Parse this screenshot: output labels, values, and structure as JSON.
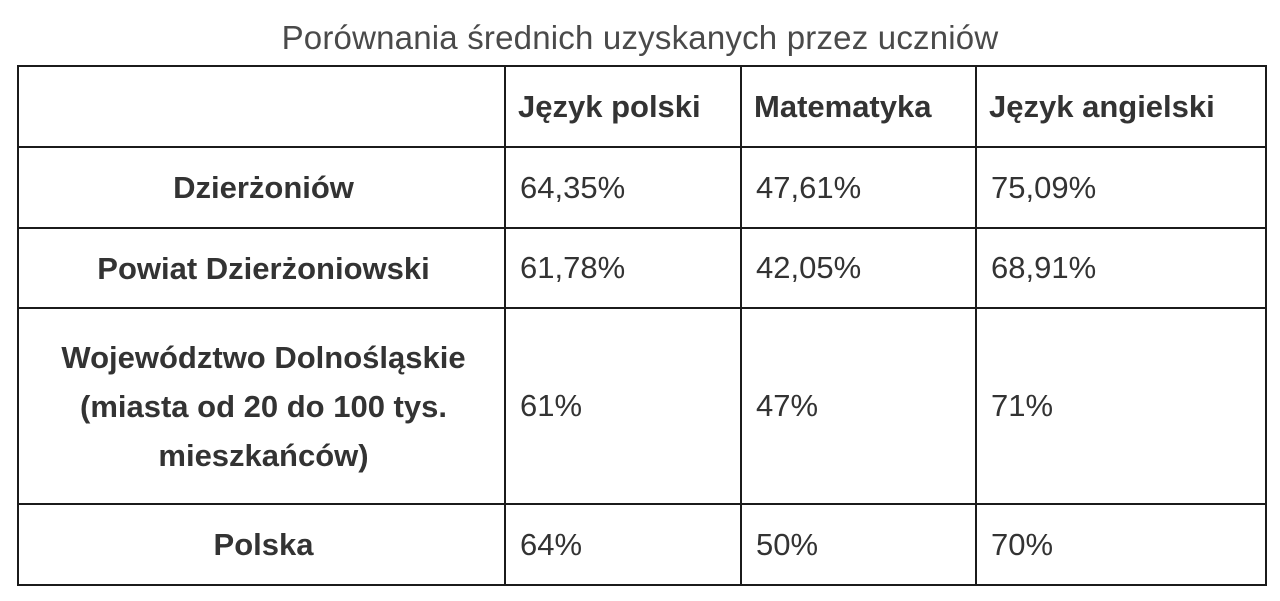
{
  "caption": "Porównania średnich uzyskanych przez uczniów",
  "table": {
    "columns": [
      "",
      "Język polski",
      "Matematyka",
      "Język angielski"
    ],
    "rows": [
      {
        "label": "Dzierżoniów",
        "values": [
          "64,35%",
          "47,61%",
          "75,09%"
        ]
      },
      {
        "label": "Powiat Dzierżoniowski",
        "values": [
          "61,78%",
          "42,05%",
          "68,91%"
        ]
      },
      {
        "label": "Województwo Dolnośląskie (miasta od 20 do 100 tys. mieszkańców)",
        "values": [
          "61%",
          "47%",
          "71%"
        ]
      },
      {
        "label": "Polska",
        "values": [
          "64%",
          "50%",
          "70%"
        ]
      }
    ]
  }
}
